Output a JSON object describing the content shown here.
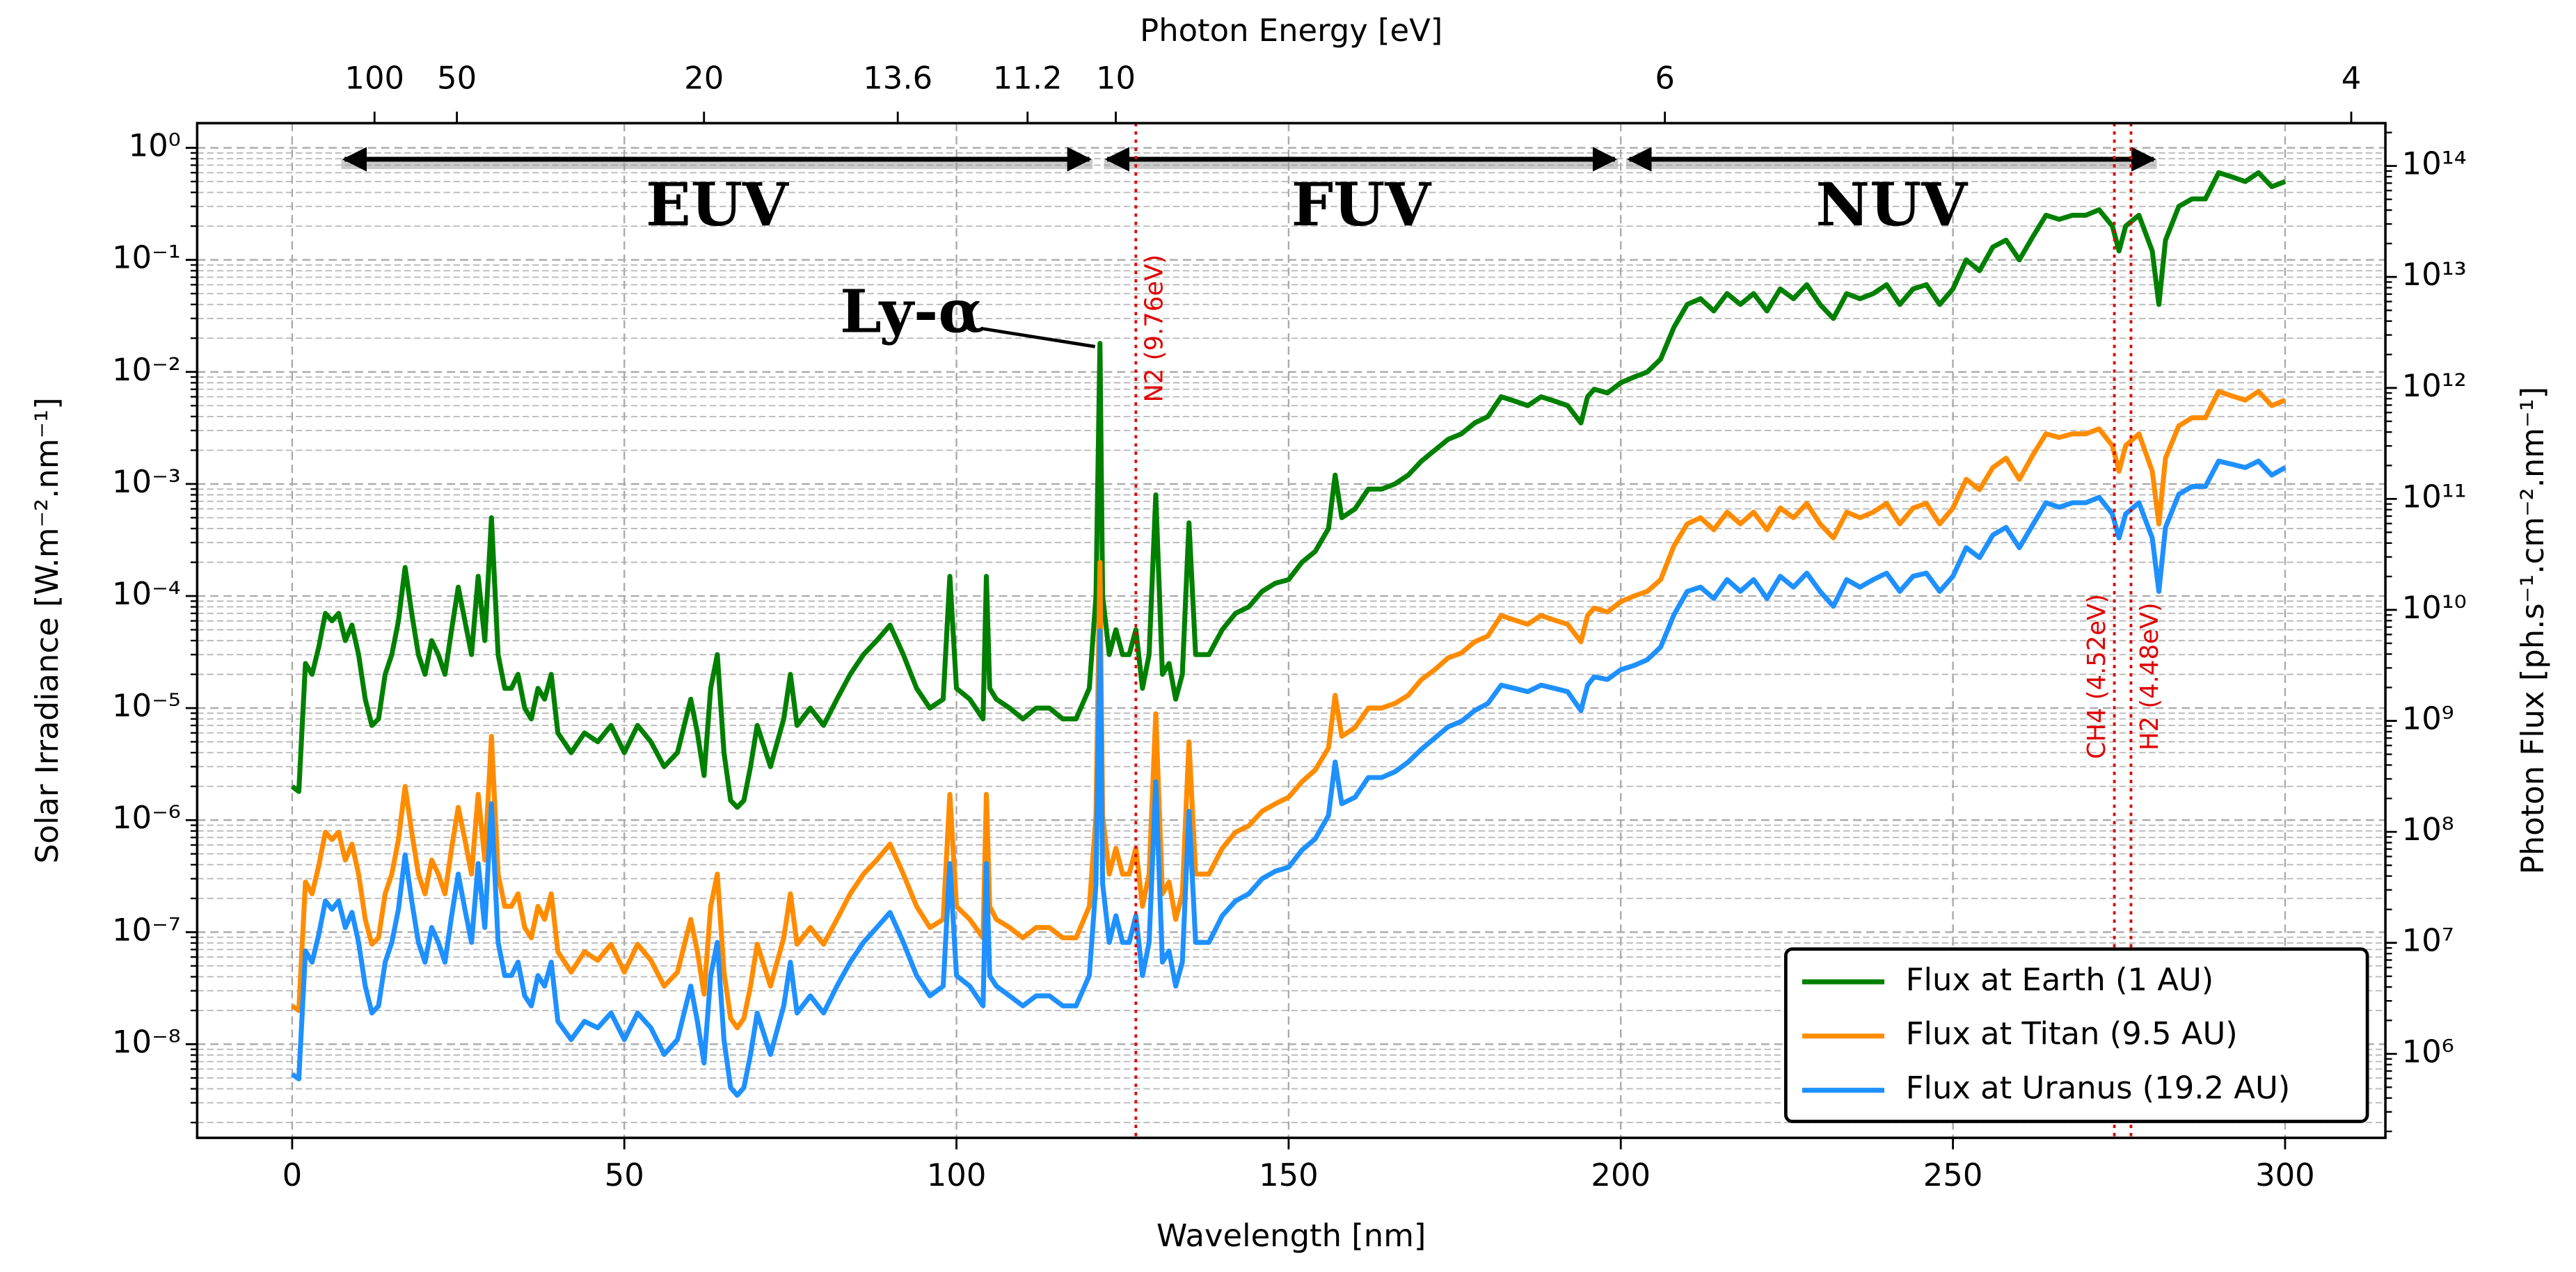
{
  "chart_data": {
    "type": "line",
    "xlabel": "Wavelength [nm]",
    "ylabel": "Solar Irradiance [W.m⁻².nm⁻¹]",
    "y2label": "Photon Flux [ph.s⁻¹.cm⁻².nm⁻¹]",
    "x2label": "Photon Energy [eV]",
    "xlim": [
      -14.3,
      315.1
    ],
    "xticks": [
      0,
      50,
      100,
      150,
      200,
      250,
      300
    ],
    "x2ticks": [
      100,
      50,
      20,
      13.6,
      11.2,
      10,
      6,
      4
    ],
    "ylim": [
      1.46e-09,
      1.66
    ],
    "yticks": [
      {
        "value": 1e-08,
        "label": "10⁻⁸"
      },
      {
        "value": 1e-07,
        "label": "10⁻⁷"
      },
      {
        "value": 1e-06,
        "label": "10⁻⁶"
      },
      {
        "value": 1e-05,
        "label": "10⁻⁵"
      },
      {
        "value": 0.0001,
        "label": "10⁻⁴"
      },
      {
        "value": 0.001,
        "label": "10⁻³"
      },
      {
        "value": 0.01,
        "label": "10⁻²"
      },
      {
        "value": 0.1,
        "label": "10⁻¹"
      },
      {
        "value": 1,
        "label": "10⁰"
      }
    ],
    "y2lim": [
      175000.0,
      243000000000000.0
    ],
    "y2ticks": [
      {
        "value": 1000000.0,
        "label": "10⁶"
      },
      {
        "value": 10000000.0,
        "label": "10⁷"
      },
      {
        "value": 100000000.0,
        "label": "10⁸"
      },
      {
        "value": 1000000000.0,
        "label": "10⁹"
      },
      {
        "value": 10000000000.0,
        "label": "10¹⁰"
      },
      {
        "value": 100000000000.0,
        "label": "10¹¹"
      },
      {
        "value": 1000000000000.0,
        "label": "10¹²"
      },
      {
        "value": 10000000000000.0,
        "label": "10¹³"
      },
      {
        "value": 100000000000000.0,
        "label": "10¹⁴"
      }
    ],
    "ylog": true,
    "grid": true,
    "legend": "lower right",
    "x": [
      0,
      1,
      2,
      3,
      4,
      5,
      6,
      7,
      8,
      9,
      10,
      11,
      12,
      13,
      14,
      15,
      16,
      17,
      18,
      19,
      20,
      21,
      22,
      23,
      24,
      25,
      26,
      27,
      28,
      29,
      30,
      31,
      32,
      33,
      34,
      35,
      36,
      37,
      38,
      39,
      40,
      42,
      44,
      46,
      48,
      50,
      52,
      54,
      56,
      58,
      60,
      61,
      62,
      63,
      64,
      65,
      66,
      67,
      68,
      69,
      70,
      72,
      74,
      75,
      76,
      78,
      80,
      82,
      84,
      86,
      88,
      90,
      92,
      94,
      96,
      98,
      99,
      100,
      102,
      104,
      104.5,
      105,
      106,
      108,
      110,
      112,
      114,
      116,
      118,
      120,
      121,
      121.6,
      122,
      123,
      124,
      125,
      126,
      127,
      128,
      129,
      130,
      131,
      132,
      133,
      134,
      135,
      136,
      138,
      140,
      142,
      144,
      146,
      148,
      150,
      152,
      154,
      156,
      157,
      158,
      160,
      162,
      164,
      166,
      168,
      170,
      172,
      174,
      176,
      178,
      180,
      182,
      184,
      186,
      188,
      190,
      192,
      194,
      195,
      196,
      198,
      200,
      202,
      204,
      206,
      208,
      210,
      212,
      214,
      216,
      218,
      220,
      222,
      224,
      226,
      228,
      230,
      232,
      234,
      236,
      238,
      240,
      242,
      244,
      246,
      248,
      250,
      252,
      254,
      256,
      258,
      260,
      262,
      264,
      266,
      268,
      270,
      272,
      274,
      275,
      276,
      278,
      280,
      281,
      282,
      284,
      286,
      288,
      290,
      292,
      294,
      296,
      298,
      300
    ],
    "series": [
      {
        "name": "Flux at Earth (1 AU)",
        "color": "#008000",
        "values": [
          2e-06,
          1.8e-06,
          2.5e-05,
          2e-05,
          3.5e-05,
          7e-05,
          6e-05,
          7e-05,
          4e-05,
          5.5e-05,
          3e-05,
          1.2e-05,
          7e-06,
          8e-06,
          2e-05,
          3e-05,
          6e-05,
          0.00018,
          7e-05,
          3e-05,
          2e-05,
          4e-05,
          3e-05,
          2e-05,
          5e-05,
          0.00012,
          6e-05,
          3e-05,
          0.00015,
          4e-05,
          0.0005,
          3e-05,
          1.5e-05,
          1.5e-05,
          2e-05,
          1e-05,
          8e-06,
          1.5e-05,
          1.2e-05,
          2e-05,
          6e-06,
          4e-06,
          6e-06,
          5e-06,
          7e-06,
          4e-06,
          7e-06,
          5e-06,
          3e-06,
          4e-06,
          1.2e-05,
          6e-06,
          2.5e-06,
          1.5e-05,
          3e-05,
          4e-06,
          1.5e-06,
          1.3e-06,
          1.5e-06,
          3e-06,
          7e-06,
          3e-06,
          8e-06,
          2e-05,
          7e-06,
          1e-05,
          7e-06,
          1.2e-05,
          2e-05,
          3e-05,
          4e-05,
          5.5e-05,
          3e-05,
          1.5e-05,
          1e-05,
          1.2e-05,
          0.00015,
          1.5e-05,
          1.2e-05,
          8e-06,
          0.00015,
          1.5e-05,
          1.2e-05,
          1e-05,
          8e-06,
          1e-05,
          1e-05,
          8e-06,
          8e-06,
          1.5e-05,
          0.0001,
          0.018,
          0.0001,
          3e-05,
          5e-05,
          3e-05,
          3e-05,
          5e-05,
          1.5e-05,
          3e-05,
          0.0008,
          2e-05,
          2.5e-05,
          1.2e-05,
          2e-05,
          0.00045,
          3e-05,
          3e-05,
          5e-05,
          7e-05,
          8e-05,
          0.00011,
          0.00013,
          0.00014,
          0.0002,
          0.00025,
          0.0004,
          0.0012,
          0.0005,
          0.0006,
          0.0009,
          0.0009,
          0.001,
          0.0012,
          0.0016,
          0.002,
          0.0025,
          0.0028,
          0.0035,
          0.004,
          0.006,
          0.0055,
          0.005,
          0.006,
          0.0055,
          0.005,
          0.0035,
          0.006,
          0.007,
          0.0065,
          0.008,
          0.009,
          0.01,
          0.013,
          0.025,
          0.04,
          0.045,
          0.035,
          0.05,
          0.04,
          0.05,
          0.035,
          0.055,
          0.045,
          0.06,
          0.04,
          0.03,
          0.05,
          0.045,
          0.05,
          0.06,
          0.04,
          0.055,
          0.06,
          0.04,
          0.055,
          0.1,
          0.08,
          0.13,
          0.15,
          0.1,
          0.16,
          0.25,
          0.23,
          0.25,
          0.25,
          0.28,
          0.2,
          0.12,
          0.2,
          0.25,
          0.12,
          0.04,
          0.15,
          0.3,
          0.35,
          0.35,
          0.6,
          0.55,
          0.5,
          0.6,
          0.45,
          0.5
        ]
      },
      {
        "name": "Flux at Titan (9.5 AU)",
        "color": "#ff8c00",
        "values": [
          2.2e-08,
          2e-08,
          2.8e-07,
          2.2e-07,
          3.9e-07,
          7.8e-07,
          6.7e-07,
          7.8e-07,
          4.4e-07,
          6.1e-07,
          3.3e-07,
          1.3e-07,
          7.8e-08,
          8.9e-08,
          2.2e-07,
          3.3e-07,
          6.7e-07,
          2e-06,
          7.8e-07,
          3.3e-07,
          2.2e-07,
          4.4e-07,
          3.3e-07,
          2.2e-07,
          5.6e-07,
          1.3e-06,
          6.7e-07,
          3.3e-07,
          1.7e-06,
          4.4e-07,
          5.6e-06,
          3.3e-07,
          1.7e-07,
          1.7e-07,
          2.2e-07,
          1.1e-07,
          8.9e-08,
          1.7e-07,
          1.3e-07,
          2.2e-07,
          6.7e-08,
          4.4e-08,
          6.7e-08,
          5.6e-08,
          7.8e-08,
          4.4e-08,
          7.8e-08,
          5.6e-08,
          3.3e-08,
          4.4e-08,
          1.3e-07,
          6.7e-08,
          2.8e-08,
          1.7e-07,
          3.3e-07,
          4.4e-08,
          1.7e-08,
          1.4e-08,
          1.7e-08,
          3.3e-08,
          7.8e-08,
          3.3e-08,
          8.9e-08,
          2.2e-07,
          7.8e-08,
          1.1e-07,
          7.8e-08,
          1.3e-07,
          2.2e-07,
          3.3e-07,
          4.4e-07,
          6.1e-07,
          3.3e-07,
          1.7e-07,
          1.1e-07,
          1.3e-07,
          1.7e-06,
          1.7e-07,
          1.3e-07,
          8.9e-08,
          1.7e-06,
          1.7e-07,
          1.3e-07,
          1.1e-07,
          8.9e-08,
          1.1e-07,
          1.1e-07,
          8.9e-08,
          8.9e-08,
          1.7e-07,
          1.1e-06,
          0.0002,
          1.1e-06,
          3.3e-07,
          5.6e-07,
          3.3e-07,
          3.3e-07,
          5.6e-07,
          1.7e-07,
          3.3e-07,
          8.9e-06,
          2.2e-07,
          2.8e-07,
          1.3e-07,
          2.2e-07,
          5e-06,
          3.3e-07,
          3.3e-07,
          5.6e-07,
          7.8e-07,
          8.9e-07,
          1.2e-06,
          1.4e-06,
          1.6e-06,
          2.2e-06,
          2.8e-06,
          4.4e-06,
          1.3e-05,
          5.6e-06,
          6.7e-06,
          1e-05,
          1e-05,
          1.1e-05,
          1.3e-05,
          1.8e-05,
          2.2e-05,
          2.8e-05,
          3.1e-05,
          3.9e-05,
          4.4e-05,
          6.7e-05,
          6.1e-05,
          5.6e-05,
          6.7e-05,
          6.1e-05,
          5.6e-05,
          3.9e-05,
          6.7e-05,
          7.8e-05,
          7.2e-05,
          8.9e-05,
          0.0001,
          0.00011,
          0.00014,
          0.00028,
          0.00044,
          0.0005,
          0.00039,
          0.00056,
          0.00044,
          0.00056,
          0.00039,
          0.00061,
          0.0005,
          0.00067,
          0.00044,
          0.00033,
          0.00056,
          0.0005,
          0.00056,
          0.00067,
          0.00044,
          0.00061,
          0.00067,
          0.00044,
          0.00061,
          0.0011,
          0.00089,
          0.0014,
          0.0017,
          0.0011,
          0.0018,
          0.0028,
          0.0026,
          0.0028,
          0.0028,
          0.0031,
          0.0022,
          0.0013,
          0.0022,
          0.0028,
          0.0013,
          0.00044,
          0.0017,
          0.0033,
          0.0039,
          0.0039,
          0.0067,
          0.0061,
          0.0056,
          0.0067,
          0.005,
          0.0056
        ]
      },
      {
        "name": "Flux at Uranus (19.2 AU)",
        "color": "#1e90ff",
        "values": [
          5.4e-09,
          4.9e-09,
          6.8e-08,
          5.4e-08,
          9.5e-08,
          1.9e-07,
          1.6e-07,
          1.9e-07,
          1.1e-07,
          1.5e-07,
          8.1e-08,
          3.3e-08,
          1.9e-08,
          2.2e-08,
          5.4e-08,
          8.1e-08,
          1.6e-07,
          4.9e-07,
          1.9e-07,
          8.1e-08,
          5.4e-08,
          1.1e-07,
          8.1e-08,
          5.4e-08,
          1.4e-07,
          3.3e-07,
          1.6e-07,
          8.1e-08,
          4.1e-07,
          1.1e-07,
          1.4e-06,
          8.1e-08,
          4.1e-08,
          4.1e-08,
          5.4e-08,
          2.7e-08,
          2.2e-08,
          4.1e-08,
          3.3e-08,
          5.4e-08,
          1.6e-08,
          1.1e-08,
          1.6e-08,
          1.4e-08,
          1.9e-08,
          1.1e-08,
          1.9e-08,
          1.4e-08,
          8.1e-09,
          1.1e-08,
          3.3e-08,
          1.6e-08,
          6.8e-09,
          4.1e-08,
          8.1e-08,
          1.1e-08,
          4.1e-09,
          3.5e-09,
          4.1e-09,
          8.1e-09,
          1.9e-08,
          8.1e-09,
          2.2e-08,
          5.4e-08,
          1.9e-08,
          2.7e-08,
          1.9e-08,
          3.3e-08,
          5.4e-08,
          8.1e-08,
          1.1e-07,
          1.5e-07,
          8.1e-08,
          4.1e-08,
          2.7e-08,
          3.3e-08,
          4.1e-07,
          4.1e-08,
          3.3e-08,
          2.2e-08,
          4.1e-07,
          4.1e-08,
          3.3e-08,
          2.7e-08,
          2.2e-08,
          2.7e-08,
          2.7e-08,
          2.2e-08,
          2.2e-08,
          4.1e-08,
          2.7e-07,
          4.9e-05,
          2.7e-07,
          8.1e-08,
          1.4e-07,
          8.1e-08,
          8.1e-08,
          1.4e-07,
          4.1e-08,
          8.1e-08,
          2.2e-06,
          5.4e-08,
          6.8e-08,
          3.3e-08,
          5.4e-08,
          1.2e-06,
          8.1e-08,
          8.1e-08,
          1.4e-07,
          1.9e-07,
          2.2e-07,
          3e-07,
          3.5e-07,
          3.8e-07,
          5.4e-07,
          6.8e-07,
          1.1e-06,
          3.3e-06,
          1.4e-06,
          1.6e-06,
          2.4e-06,
          2.4e-06,
          2.7e-06,
          3.3e-06,
          4.3e-06,
          5.4e-06,
          6.8e-06,
          7.6e-06,
          9.5e-06,
          1.1e-05,
          1.6e-05,
          1.5e-05,
          1.4e-05,
          1.6e-05,
          1.5e-05,
          1.4e-05,
          9.5e-06,
          1.6e-05,
          1.9e-05,
          1.8e-05,
          2.2e-05,
          2.4e-05,
          2.7e-05,
          3.5e-05,
          6.8e-05,
          0.00011,
          0.00012,
          9.5e-05,
          0.00014,
          0.00011,
          0.00014,
          9.5e-05,
          0.00015,
          0.00012,
          0.00016,
          0.00011,
          8.1e-05,
          0.00014,
          0.00012,
          0.00014,
          0.00016,
          0.00011,
          0.00015,
          0.00016,
          0.00011,
          0.00015,
          0.00027,
          0.00022,
          0.00035,
          0.00041,
          0.00027,
          0.00043,
          0.00068,
          0.00062,
          0.00068,
          0.00068,
          0.00076,
          0.00054,
          0.00033,
          0.00054,
          0.00068,
          0.00033,
          0.00011,
          0.00041,
          0.00081,
          0.00095,
          0.00095,
          0.0016,
          0.0015,
          0.0014,
          0.0016,
          0.0012,
          0.0014
        ]
      }
    ],
    "bands": [
      {
        "text": "EUV",
        "x": [
          7.4,
          120.5
        ]
      },
      {
        "text": "FUV",
        "x": [
          122.2,
          199.6
        ]
      },
      {
        "text": "NUV",
        "x": [
          200.8,
          280.7
        ]
      }
    ],
    "vlines": [
      {
        "text": "N2 (9.76eV)",
        "x": 127.0,
        "color": "#e00000"
      },
      {
        "text": "CH4 (4.52eV)",
        "x": 274.3,
        "color": "#e00000"
      },
      {
        "text": "H2 (4.48eV)",
        "x": 276.8,
        "color": "#e00000"
      }
    ],
    "peak_label": {
      "text": "Ly-α",
      "x": 121.6,
      "y": 0.018
    }
  }
}
